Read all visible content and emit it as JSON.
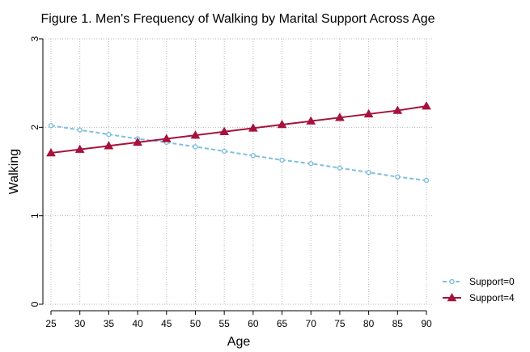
{
  "chart_data": {
    "type": "line",
    "title": "Figure 1. Men's Frequency of Walking by Marital Support Across Age",
    "xlabel": "Age",
    "ylabel": "Walking",
    "x": [
      25,
      30,
      35,
      40,
      45,
      50,
      55,
      60,
      65,
      70,
      75,
      80,
      85,
      90
    ],
    "xlim": [
      25,
      90
    ],
    "ylim": [
      0,
      3
    ],
    "xticks": [
      "25",
      "30",
      "35",
      "40",
      "45",
      "50",
      "55",
      "60",
      "65",
      "70",
      "75",
      "80",
      "85",
      "90"
    ],
    "yticks": [
      "0",
      "1",
      "2",
      "3"
    ],
    "grid": true,
    "legend_position": "right",
    "series": [
      {
        "name": "Support=0",
        "color": "#7fbfe0",
        "line_style": "dashed",
        "marker": "circle",
        "values": [
          2.02,
          1.97,
          1.92,
          1.87,
          1.83,
          1.78,
          1.73,
          1.68,
          1.63,
          1.59,
          1.54,
          1.49,
          1.44,
          1.4
        ]
      },
      {
        "name": "Support=4",
        "color": "#a6123c",
        "line_style": "solid",
        "marker": "triangle",
        "values": [
          1.71,
          1.75,
          1.79,
          1.83,
          1.87,
          1.91,
          1.95,
          1.99,
          2.03,
          2.07,
          2.11,
          2.15,
          2.19,
          2.24
        ]
      }
    ]
  }
}
